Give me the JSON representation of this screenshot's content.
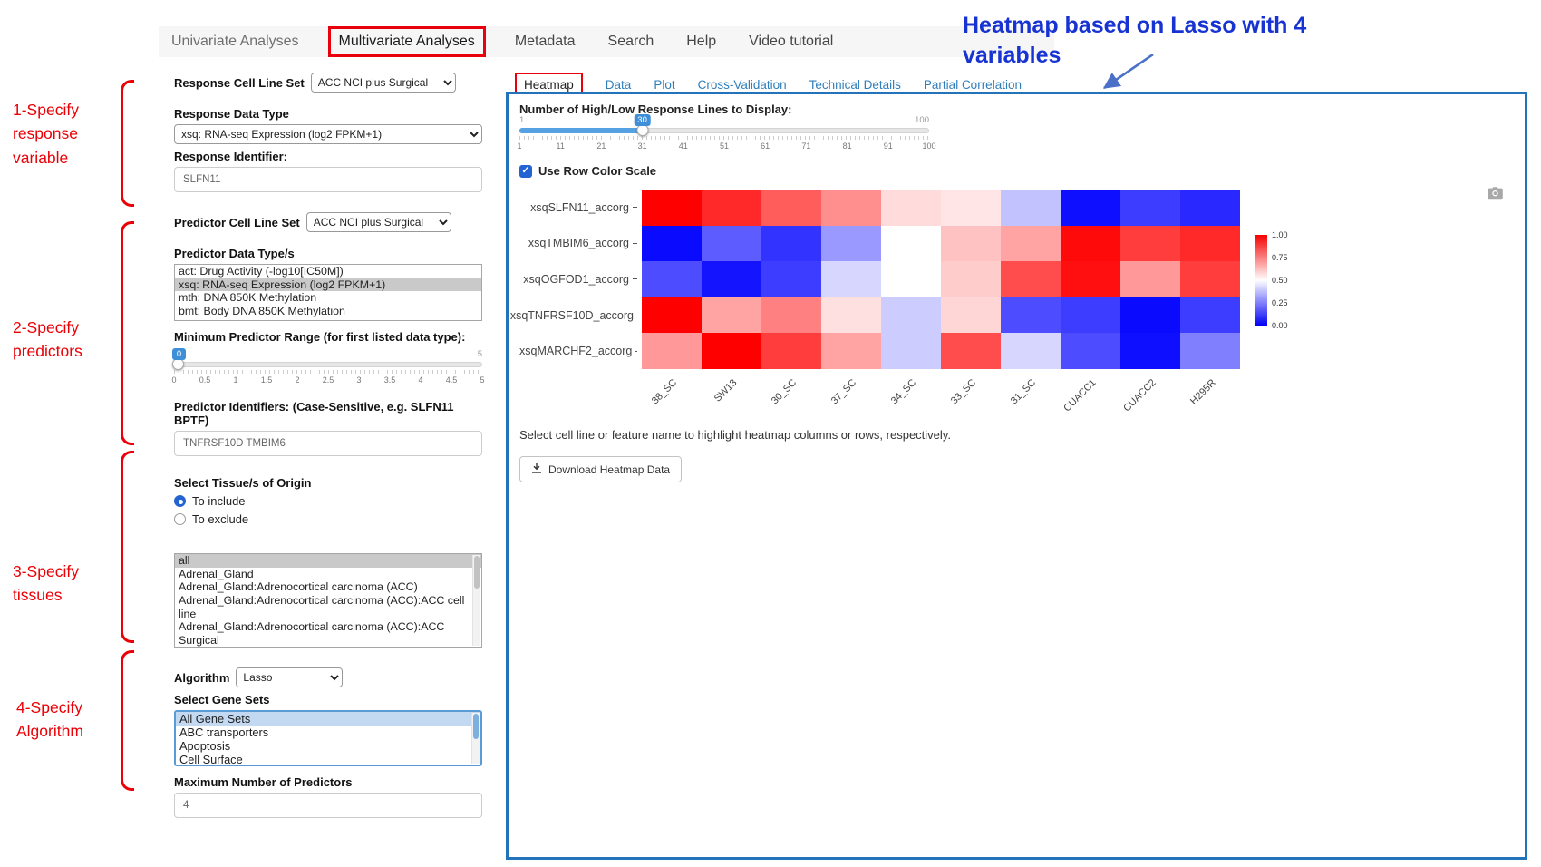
{
  "colors": {
    "annotation_red": "#ec0006",
    "callout_blue": "#1733d2",
    "panel_border_blue": "#2273ba",
    "tab_link_blue": "#2e7ebc",
    "slider_blue": "#3f8fd8",
    "heatmap_high": "#ff0000",
    "heatmap_mid": "#ffffff",
    "heatmap_low": "#0000ff"
  },
  "icons": {
    "camera": "camera-icon (plot snapshot)",
    "download": "download-arrow-icon",
    "checkbox_check": "check-icon"
  },
  "nav": {
    "items": [
      {
        "label": "Univariate Analyses",
        "muted": true
      },
      {
        "label": "Multivariate Analyses",
        "highlighted": true
      },
      {
        "label": "Metadata"
      },
      {
        "label": "Search"
      },
      {
        "label": "Help"
      },
      {
        "label": "Video tutorial"
      }
    ]
  },
  "annotations": {
    "steps": [
      {
        "label": "1-Specify response variable"
      },
      {
        "label": "2-Specify predictors"
      },
      {
        "label": "3-Specify tissues"
      },
      {
        "label": "4-Specify Algorithm"
      }
    ],
    "callout": "Heatmap based on Lasso with 4 variables"
  },
  "form": {
    "response_cell_line_set": {
      "label": "Response Cell Line Set",
      "value": "ACC NCI plus Surgical"
    },
    "response_data_type": {
      "label": "Response Data Type",
      "value": "xsq: RNA-seq Expression (log2 FPKM+1)"
    },
    "response_identifier": {
      "label": "Response Identifier:",
      "value": "SLFN11"
    },
    "predictor_cell_line_set": {
      "label": "Predictor Cell Line Set",
      "value": "ACC NCI plus Surgical"
    },
    "predictor_data_types": {
      "label": "Predictor Data Type/s",
      "options": [
        "act: Drug Activity (-log10[IC50M])",
        "xsq: RNA-seq Expression (log2 FPKM+1)",
        "mth: DNA 850K Methylation",
        "bmt: Body DNA 850K Methylation"
      ],
      "selected_index": 1
    },
    "min_predictor_range": {
      "label": "Minimum Predictor Range (for first listed data type):",
      "value": "0",
      "max_label": "5",
      "ticks": [
        "0",
        "0.5",
        "1",
        "1.5",
        "2",
        "2.5",
        "3",
        "3.5",
        "4",
        "4.5",
        "5"
      ]
    },
    "predictor_identifiers": {
      "label": "Predictor Identifiers: (Case-Sensitive, e.g. SLFN11 BPTF)",
      "value": "TNFRSF10D TMBIM6"
    },
    "tissue": {
      "label": "Select Tissue/s of Origin",
      "include_label": "To include",
      "exclude_label": "To exclude",
      "selected_mode": "include",
      "options": [
        "all",
        "Adrenal_Gland",
        "Adrenal_Gland:Adrenocortical carcinoma (ACC)",
        "Adrenal_Gland:Adrenocortical carcinoma (ACC):ACC cell line",
        "Adrenal_Gland:Adrenocortical carcinoma (ACC):ACC Surgical"
      ],
      "selected_index": 0
    },
    "algorithm": {
      "label": "Algorithm",
      "value": "Lasso"
    },
    "gene_sets": {
      "label": "Select Gene Sets",
      "options": [
        "All Gene Sets",
        "ABC transporters",
        "Apoptosis",
        "Cell Surface"
      ],
      "selected_index": 0
    },
    "max_predictors": {
      "label": "Maximum Number of Predictors",
      "value": "4"
    }
  },
  "main": {
    "tabs": [
      {
        "label": "Heatmap",
        "active": true
      },
      {
        "label": "Data"
      },
      {
        "label": "Plot"
      },
      {
        "label": "Cross-Validation"
      },
      {
        "label": "Technical Details"
      },
      {
        "label": "Partial Correlation"
      }
    ],
    "lines_slider": {
      "label": "Number of High/Low Response Lines to Display:",
      "value": "30",
      "percent": 30,
      "min_label": "1",
      "max_label": "100",
      "ticks": [
        "1",
        "11",
        "21",
        "31",
        "41",
        "51",
        "61",
        "71",
        "81",
        "91",
        "100"
      ]
    },
    "row_color_scale": {
      "label": "Use Row Color Scale",
      "checked": true
    },
    "hint": "Select cell line or feature name to highlight heatmap columns or rows, respectively.",
    "download_button": "Download Heatmap Data"
  },
  "chart_data": {
    "type": "heatmap",
    "rows": [
      "xsqSLFN11_accorg",
      "xsqTMBIM6_accorg",
      "xsqOGFOD1_accorg",
      "xsqTNFRSF10D_accorg",
      "xsqMARCHF2_accorg"
    ],
    "columns": [
      "38_SC",
      "SW13",
      "30_SC",
      "37_SC",
      "34_SC",
      "33_SC",
      "31_SC",
      "CUACC1",
      "CUACC2",
      "H295R"
    ],
    "values": [
      [
        1.0,
        0.92,
        0.82,
        0.72,
        0.57,
        0.55,
        0.38,
        0.03,
        0.12,
        0.08
      ],
      [
        0.02,
        0.18,
        0.1,
        0.3,
        0.5,
        0.62,
        0.68,
        0.98,
        0.88,
        0.92
      ],
      [
        0.15,
        0.04,
        0.12,
        0.42,
        0.5,
        0.6,
        0.85,
        0.97,
        0.7,
        0.88
      ],
      [
        1.0,
        0.68,
        0.75,
        0.56,
        0.4,
        0.58,
        0.15,
        0.12,
        0.02,
        0.12
      ],
      [
        0.7,
        1.0,
        0.88,
        0.68,
        0.4,
        0.85,
        0.42,
        0.15,
        0.03,
        0.25
      ]
    ],
    "value_range": [
      0,
      1
    ],
    "colorbar_ticks": [
      "1.00",
      "0.75",
      "0.50",
      "0.25",
      "0.00"
    ],
    "colorscale": {
      "high": "#ff0000",
      "mid": "#ffffff",
      "low": "#0000ff"
    },
    "legend_position": "right"
  }
}
